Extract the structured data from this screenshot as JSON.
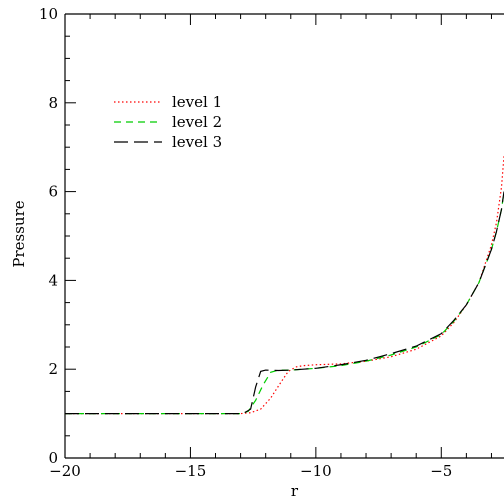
{
  "chart_data": {
    "type": "line",
    "title": "",
    "xlabel": "r",
    "ylabel": "Pressure",
    "xlim": [
      -20,
      -2.5
    ],
    "ylim": [
      0,
      10
    ],
    "xticks": [
      -20,
      -15,
      -10,
      -5
    ],
    "xtick_labels": [
      "−20",
      "−15",
      "−10",
      "−5"
    ],
    "yticks": [
      0,
      2,
      4,
      6,
      8,
      10
    ],
    "ytick_labels": [
      "0",
      "2",
      "4",
      "6",
      "8",
      "10"
    ],
    "grid": false,
    "legend_position": "top-left",
    "series": [
      {
        "name": "level 1",
        "color": "#ff0000",
        "style": "dotted",
        "x": [
          -20,
          -13,
          -12.6,
          -12.2,
          -11.8,
          -11.4,
          -11.1,
          -10.8,
          -10.5,
          -10,
          -9,
          -8,
          -7,
          -6,
          -5,
          -4.5,
          -4,
          -3.5,
          -3,
          -2.8,
          -2.6,
          -2.5
        ],
        "y": [
          1.0,
          1.0,
          1.02,
          1.1,
          1.35,
          1.7,
          1.95,
          2.05,
          2.08,
          2.1,
          2.12,
          2.18,
          2.28,
          2.45,
          2.75,
          3.05,
          3.45,
          3.95,
          4.8,
          5.3,
          6.1,
          6.8
        ]
      },
      {
        "name": "level 2",
        "color": "#00cc00",
        "style": "dashed",
        "x": [
          -20,
          -13,
          -12.7,
          -12.4,
          -12.1,
          -11.8,
          -11.5,
          -11.2,
          -11,
          -10,
          -9,
          -8,
          -7,
          -6,
          -5,
          -4.5,
          -4,
          -3.5,
          -3,
          -2.8,
          -2.6,
          -2.5
        ],
        "y": [
          1.0,
          1.0,
          1.05,
          1.3,
          1.65,
          1.93,
          1.98,
          1.98,
          1.98,
          2.02,
          2.08,
          2.18,
          2.32,
          2.5,
          2.78,
          3.08,
          3.45,
          3.95,
          4.7,
          5.1,
          5.6,
          6.0
        ]
      },
      {
        "name": "level 3",
        "color": "#000000",
        "style": "long-dashed",
        "x": [
          -20,
          -12.9,
          -12.6,
          -12.4,
          -12.2,
          -12,
          -11.5,
          -11,
          -10,
          -9,
          -8,
          -7,
          -6,
          -5,
          -4.5,
          -4,
          -3.5,
          -3,
          -2.8,
          -2.6,
          -2.5
        ],
        "y": [
          1.0,
          1.0,
          1.1,
          1.6,
          1.95,
          1.98,
          1.97,
          1.98,
          2.02,
          2.1,
          2.2,
          2.35,
          2.52,
          2.8,
          3.1,
          3.45,
          3.95,
          4.7,
          5.1,
          5.6,
          6.0
        ]
      }
    ]
  }
}
